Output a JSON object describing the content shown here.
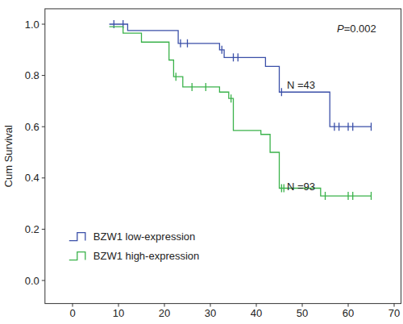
{
  "chart_data": {
    "type": "line",
    "line_style": "step",
    "marker": "tick",
    "ylabel": "Cum Survival",
    "annotations": [
      "P=0.002",
      "N =43",
      "N =93"
    ],
    "xlim": [
      -6,
      71.5
    ],
    "ylim": [
      -0.09,
      1.06
    ],
    "xticks": [
      0,
      10,
      20,
      30,
      40,
      50,
      60,
      70
    ],
    "yticks": [
      {
        "value": 0,
        "label": "0.0"
      },
      {
        "value": 0.2,
        "label": "0.2"
      },
      {
        "value": 0.4,
        "label": "0.4"
      },
      {
        "value": 0.6,
        "label": "0.6"
      },
      {
        "value": 0.8,
        "label": "0.8"
      },
      {
        "value": 1,
        "label": "1.0"
      }
    ],
    "grid": false,
    "legend": "bottom-left",
    "series": [
      {
        "name": "BZW1 low-expression",
        "color": "#3a4fa8",
        "x": [
          8,
          12,
          23,
          32,
          33,
          42,
          45,
          56,
          65
        ],
        "values": [
          1.0,
          0.975,
          0.925,
          0.9,
          0.87,
          0.835,
          0.735,
          0.6,
          0.6
        ],
        "censor_x": [
          9,
          11,
          23.5,
          25,
          32.5,
          35,
          36,
          45.5,
          57,
          58,
          60,
          61,
          65
        ],
        "censor_values": [
          1.0,
          1.0,
          0.925,
          0.925,
          0.9,
          0.87,
          0.87,
          0.735,
          0.6,
          0.6,
          0.6,
          0.6,
          0.6
        ]
      },
      {
        "name": "BZW1 high-expression",
        "color": "#3ab24a",
        "x": [
          8,
          11,
          15,
          21,
          22,
          24,
          32,
          34,
          35,
          41,
          43,
          45,
          54,
          65
        ],
        "values": [
          0.99,
          0.965,
          0.93,
          0.86,
          0.795,
          0.755,
          0.735,
          0.71,
          0.585,
          0.57,
          0.5,
          0.36,
          0.33,
          0.33
        ],
        "censor_x": [
          22.5,
          26,
          29,
          34.5,
          45.5,
          46,
          55,
          60,
          61,
          65
        ],
        "censor_values": [
          0.795,
          0.755,
          0.755,
          0.71,
          0.36,
          0.36,
          0.33,
          0.33,
          0.33,
          0.33
        ]
      }
    ]
  }
}
